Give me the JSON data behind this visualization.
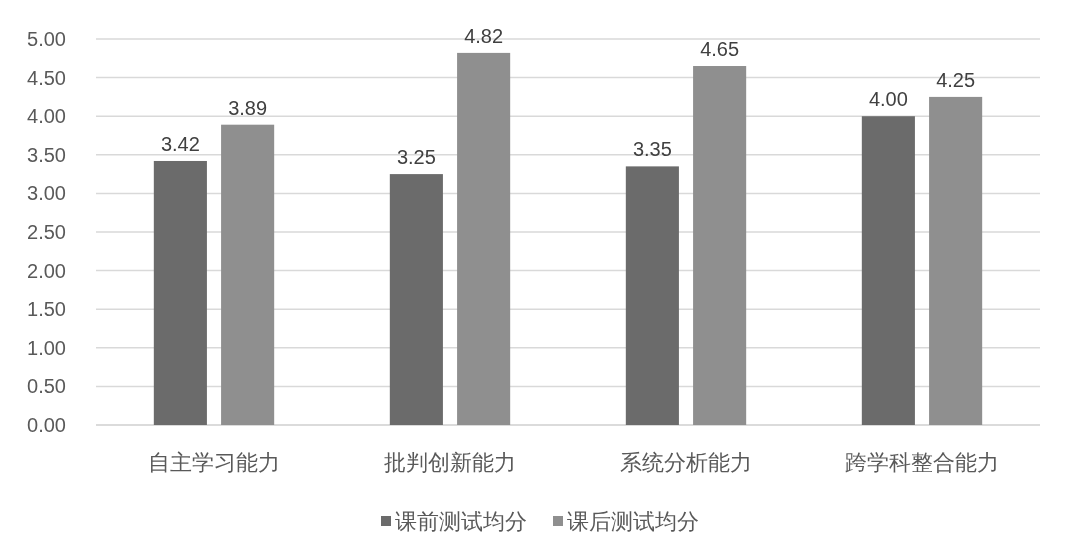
{
  "chart_data": {
    "type": "bar",
    "categories": [
      "自主学习能力",
      "批判创新能力",
      "系统分析能力",
      "跨学科整合能力"
    ],
    "series": [
      {
        "name": "课前测试均分",
        "color": "#6b6b6b",
        "values": [
          3.42,
          3.25,
          3.35,
          4.0
        ],
        "value_labels": [
          "3.42",
          "3.25",
          "3.35",
          "4.00"
        ]
      },
      {
        "name": "课后测试均分",
        "color": "#8f8f8f",
        "values": [
          3.89,
          4.82,
          4.65,
          4.25
        ],
        "value_labels": [
          "3.89",
          "4.82",
          "4.65",
          "4.25"
        ]
      }
    ],
    "ylim": [
      0,
      5
    ],
    "yticks": [
      {
        "value": 0,
        "label": "0.00"
      },
      {
        "value": 0.5,
        "label": "0.50"
      },
      {
        "value": 1,
        "label": "1.00"
      },
      {
        "value": 1.5,
        "label": "1.50"
      },
      {
        "value": 2,
        "label": "2.00"
      },
      {
        "value": 2.5,
        "label": "2.50"
      },
      {
        "value": 3,
        "label": "3.00"
      },
      {
        "value": 3.5,
        "label": "3.50"
      },
      {
        "value": 4,
        "label": "4.00"
      },
      {
        "value": 4.5,
        "label": "4.50"
      },
      {
        "value": 5,
        "label": "5.00"
      }
    ],
    "grid": "y",
    "legend": "bottom"
  }
}
